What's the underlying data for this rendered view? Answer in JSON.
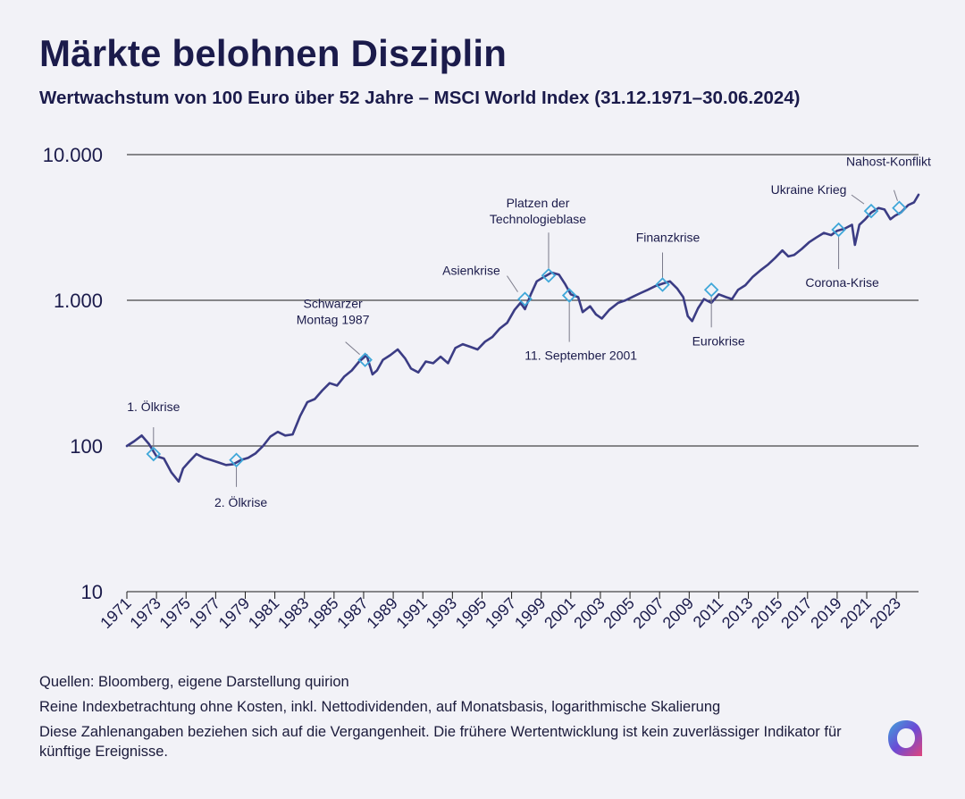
{
  "header": {
    "title": "Märkte belohnen Disziplin",
    "subtitle": "Wertwachstum von 100 Euro über 52 Jahre – MSCI World Index (31.12.1971–30.06.2024)"
  },
  "footer": {
    "sources": "Quellen: Bloomberg, eigene Darstellung quirion",
    "method": "Reine Indexbetrachtung ohne Kosten, inkl. Nettodividenden, auf Monatsbasis, logarithmische Skalierung",
    "disclaimer": "Diese Zahlenangaben beziehen sich auf die Vergangenheit. Die frühere Wertentwicklung ist kein zuverlässiger Indikator für künftige Ereignisse."
  },
  "logo": {
    "icon": "quirion-logo-icon"
  },
  "colors": {
    "line": "#3b3c84",
    "marker": "#3fa7d9",
    "text": "#1b1b4b",
    "grid": "#1b1b1b",
    "background": "#f2f2f7"
  },
  "chart_data": {
    "type": "line",
    "title": "",
    "xlabel": "",
    "ylabel": "",
    "yscale": "log",
    "ylim": [
      10,
      10000
    ],
    "xlim": [
      1971.0,
      2024.5
    ],
    "yticks": [
      10,
      100,
      1000,
      10000
    ],
    "ytick_labels": [
      "10",
      "100",
      "1.000",
      "10.000"
    ],
    "xticks": [
      "1971",
      "1973",
      "1975",
      "1977",
      "1979",
      "1981",
      "1983",
      "1985",
      "1987",
      "1989",
      "1991",
      "1993",
      "1995",
      "1997",
      "1999",
      "2001",
      "2003",
      "2005",
      "2007",
      "2009",
      "2011",
      "2013",
      "2015",
      "2017",
      "2019",
      "2021",
      "2023"
    ],
    "grid": "horizontal",
    "series": [
      {
        "x": [
          1971.0,
          1971.5,
          1972.0,
          1972.5,
          1973.0,
          1973.5,
          1974.0,
          1974.5,
          1974.8,
          1975.2,
          1975.7,
          1976.2,
          1976.7,
          1977.2,
          1977.7,
          1978.2,
          1978.7,
          1979.2,
          1979.7,
          1980.2,
          1980.7,
          1981.2,
          1981.7,
          1982.2,
          1982.7,
          1983.2,
          1983.7,
          1984.2,
          1984.7,
          1985.2,
          1985.7,
          1986.2,
          1986.7,
          1987.2,
          1987.6,
          1987.9,
          1988.3,
          1988.8,
          1989.3,
          1989.8,
          1990.2,
          1990.7,
          1991.2,
          1991.7,
          1992.2,
          1992.7,
          1993.2,
          1993.7,
          1994.2,
          1994.7,
          1995.2,
          1995.7,
          1996.2,
          1996.7,
          1997.2,
          1997.6,
          1997.9,
          1998.3,
          1998.7,
          1999.2,
          1999.7,
          2000.2,
          2000.6,
          2001.0,
          2001.5,
          2001.8,
          2002.3,
          2002.7,
          2003.1,
          2003.6,
          2004.2,
          2004.7,
          2005.2,
          2005.7,
          2006.2,
          2006.7,
          2007.2,
          2007.7,
          2008.2,
          2008.6,
          2008.9,
          2009.2,
          2009.6,
          2010.0,
          2010.5,
          2011.0,
          2011.5,
          2011.9,
          2012.3,
          2012.8,
          2013.3,
          2013.8,
          2014.3,
          2014.8,
          2015.3,
          2015.7,
          2016.1,
          2016.6,
          2017.1,
          2017.6,
          2018.1,
          2018.6,
          2019.0,
          2019.5,
          2020.0,
          2020.2,
          2020.5,
          2020.9,
          2021.3,
          2021.8,
          2022.2,
          2022.6,
          2022.9,
          2023.3,
          2023.8,
          2024.2,
          2024.5
        ],
        "y": [
          100,
          108,
          118,
          103,
          85,
          82,
          66,
          57,
          70,
          78,
          88,
          83,
          80,
          77,
          74,
          75,
          80,
          83,
          89,
          100,
          116,
          125,
          118,
          120,
          160,
          200,
          210,
          240,
          270,
          260,
          300,
          330,
          380,
          420,
          310,
          330,
          390,
          420,
          460,
          400,
          340,
          320,
          380,
          370,
          410,
          370,
          470,
          500,
          480,
          460,
          520,
          560,
          640,
          700,
          860,
          960,
          870,
          1100,
          1350,
          1450,
          1550,
          1500,
          1300,
          1100,
          1050,
          830,
          910,
          800,
          750,
          860,
          960,
          1000,
          1060,
          1120,
          1180,
          1250,
          1300,
          1350,
          1200,
          1050,
          780,
          720,
          880,
          1020,
          960,
          1100,
          1050,
          1020,
          1180,
          1270,
          1450,
          1600,
          1750,
          1950,
          2200,
          2000,
          2050,
          2250,
          2500,
          2700,
          2900,
          2800,
          3000,
          3100,
          3300,
          2400,
          3300,
          3600,
          4000,
          4300,
          4200,
          3600,
          3800,
          4000,
          4500,
          4700,
          5300
        ]
      }
    ],
    "annotations": [
      {
        "label": "1. Ölkrise",
        "x": 1972.8,
        "y": 88
      },
      {
        "label": "2. Ölkrise",
        "x": 1978.4,
        "y": 80
      },
      {
        "label": "Schwarzer Montag 1987",
        "x": 1987.1,
        "y": 390
      },
      {
        "label": "Asienkrise",
        "x": 1997.9,
        "y": 1020
      },
      {
        "label": "Platzen der Technologieblase",
        "x": 1999.5,
        "y": 1480
      },
      {
        "label": "11. September 2001",
        "x": 2000.9,
        "y": 1080
      },
      {
        "label": "Finanzkrise",
        "x": 2007.2,
        "y": 1280
      },
      {
        "label": "Eurokrise",
        "x": 2010.5,
        "y": 1180
      },
      {
        "label": "Corona-Krise",
        "x": 2019.1,
        "y": 3050
      },
      {
        "label": "Ukraine Krieg",
        "x": 2021.3,
        "y": 4100
      },
      {
        "label": "Nahost-Konflikt",
        "x": 2023.2,
        "y": 4300
      }
    ]
  }
}
